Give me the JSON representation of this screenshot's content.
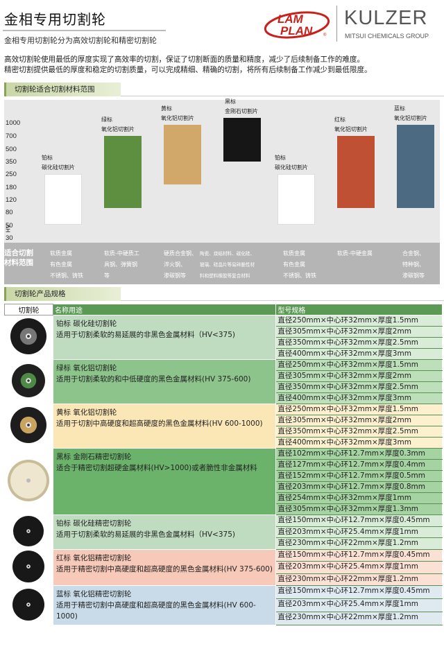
{
  "header": {
    "title": "金相专用切割轮",
    "subtitle": "金相专用切割轮分为高效切割轮和精密切割轮",
    "brand_lam_top": "LAM",
    "brand_lam_bottom": "PLAN",
    "brand_lam_mark": "®",
    "brand_kulzer": "KULZER",
    "brand_mitsui": "MITSUI CHEMICALS GROUP",
    "colors": {
      "lamplan": "#c8211c",
      "kulzer": "#555555"
    }
  },
  "intro": [
    "高效切割轮使用最低的厚度实现了高效率的切割，保证了切割断面的质量和精度，减少了后续制备工作的难度。",
    "精密切割提供最低的厚度和稳定的切割质量，可以完成精细、精确的切割，将所有后续制备工作减少到最低限度。"
  ],
  "section1": {
    "title": "切割轮适合切割材料范围"
  },
  "section2": {
    "title": "切割轮产品规格"
  },
  "chart_data": {
    "type": "bar",
    "ylabel": "HV",
    "y_ticks": [
      "1000",
      "700",
      "500",
      "350",
      "250",
      "180",
      "120",
      "80",
      "50",
      "30"
    ],
    "bars": [
      {
        "label": [
          "铂标",
          "碳化硅切割片"
        ],
        "low": "30",
        "high": "250",
        "color": "#ffffff"
      },
      {
        "label": [
          "绿标",
          "氧化铝切割片"
        ],
        "low": "50",
        "high": "700",
        "color": "#5e8e40"
      },
      {
        "label": [
          "黄标",
          "氧化铝切割片"
        ],
        "low": "180",
        "high": "1000",
        "color": "#d2a86a"
      },
      {
        "label": [
          "黑标",
          "金刚石切割片"
        ],
        "low": "230",
        "high": "1000",
        "color": "#161616"
      },
      {
        "label": [
          "铂标",
          "碳化硅切割片"
        ],
        "low": "30",
        "high": "250",
        "color": "#ffffff"
      },
      {
        "label": [
          "红标",
          "氧化铝切割片"
        ],
        "low": "50",
        "high": "700",
        "color": "#bf5033"
      },
      {
        "label": [
          "蓝标",
          "氧化铝切割片"
        ],
        "low": "50",
        "high": "1000",
        "color": "#4c6a82"
      }
    ],
    "range_title": [
      "适合切割",
      "材料范围"
    ],
    "ranges": [
      [
        "软质金属",
        "有色金属",
        "不锈钢、铸铁"
      ],
      [
        "软质-中硬质工",
        "具钢、弹簧钢",
        "等"
      ],
      [
        "硬质合金钢、",
        "淬火钢、",
        "渗碳钢等"
      ],
      [
        "陶瓷、烧结材料、碳化硅、",
        "玻璃、硅晶片等易碎脆性材",
        "料和塑料橡胶等复合材料"
      ],
      [
        "软质金属",
        "有色金属",
        "不锈钢、铸铁"
      ],
      [
        "软质-中硬金属"
      ],
      [
        "合金钢、",
        "特种钢、",
        "渗碳钢等"
      ]
    ]
  },
  "table": {
    "headers": [
      "切割轮",
      "名称用途",
      "型号规格"
    ],
    "rows": [
      {
        "name": "铂标  碳化硅切割轮",
        "use": "适用于切割柔软的易延展的非黑色金属材料（HV<375)",
        "disc": "dark",
        "style": "g1",
        "sizes": [
          "直径250mm×中心环32mm×厚度1.5mm",
          "直径305mm×中心环32mm×厚度2mm",
          "直径350mm×中心环32mm×厚度2.5mm",
          "直径400mm×中心环32mm×厚度3mm"
        ]
      },
      {
        "name": "绿标  氧化铝切割轮",
        "use": "适用于切割柔软的和中低硬度的黑色金属材料(HV 375-600)",
        "disc": "green",
        "style": "g2",
        "sizes": [
          "直径250mm×中心环32mm×厚度1.5mm",
          "直径305mm×中心环32mm×厚度2mm",
          "直径350mm×中心环32mm×厚度2.5mm",
          "直径400mm×中心环32mm×厚度3mm"
        ]
      },
      {
        "name": "黄标  氧化铝切割轮",
        "use": "适用于切割中高硬度和超高硬度的黑色金属材料(HV 600-1000)",
        "disc": "yellow",
        "style": "y",
        "sizes": [
          "直径250mm×中心环32mm×厚度1.5mm",
          "直径305mm×中心环32mm×厚度2mm",
          "直径350mm×中心环32mm×厚度2.5mm",
          "直径400mm×中心环32mm×厚度3mm"
        ]
      },
      {
        "name": "黑标  金刚石精密切割轮",
        "use": "适合于精密切割超硬金属材料(HV>1000)或者脆性非金属材料",
        "disc": "diamond",
        "style": "g3",
        "sizes": [
          "直径102mm×中心环12.7mm×厚度0.3mm",
          "直径127mm×中心环12.7mm×厚度0.4mm",
          "直径152mm×中心环12.7mm×厚度0.5mm",
          "直径203mm×中心环12.7mm×厚度0.8mm",
          "直径254mm×中心环32mm×厚度1mm",
          "直径305mm×中心环32mm×厚度1.3mm"
        ]
      },
      {
        "name": "铂标  碳化硅精密切割轮",
        "use": "适用于切割柔软的易延展的非黑色金属材料（HV<375)",
        "disc": "thin",
        "style": "g1",
        "sizes": [
          "直径150mm×中心环12.7mm×厚度0.45mm",
          "直径203mm×中心环25.4mm×厚度1mm",
          "直径230mm×中心环22mm×厚度1.2mm"
        ]
      },
      {
        "name": "红标  氧化铝精密切割轮",
        "use": "适用于精密切割中高硬度和超高硬度的黑色金属材料(HV 375-600)",
        "disc": "thin",
        "style": "p",
        "sizes": [
          "直径150mm×中心环12.7mm×厚度0.45mm",
          "直径203mm×中心环25.4mm×厚度1mm",
          "直径230mm×中心环22mm×厚度1.2mm"
        ]
      },
      {
        "name": "蓝标  氧化铝精密切割轮",
        "use": "适用于精密切割中高硬度和超高硬度的黑色金属材料(HV 600-1000)",
        "disc": "thin",
        "style": "b",
        "sizes": [
          "直径150mm×中心环12.7mm×厚度0.45mm",
          "直径203mm×中心环25.4mm×厚度1mm",
          "直径230mm×中心环22mm×厚度1.2mm"
        ]
      }
    ]
  }
}
